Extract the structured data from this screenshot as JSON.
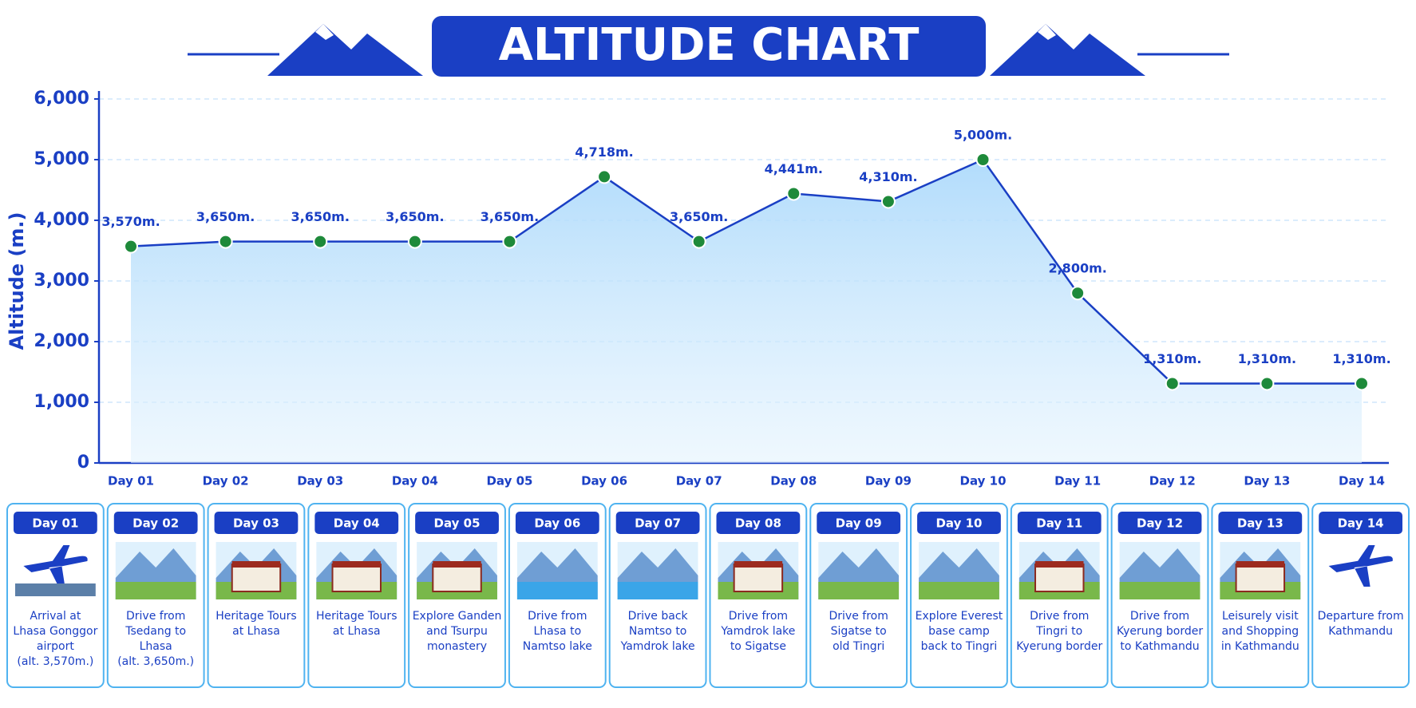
{
  "chart_data": {
    "type": "line",
    "title": "ALTITUDE CHART",
    "y_label": "Altitude (m.)",
    "categories": [
      "Day 01",
      "Day 02",
      "Day 03",
      "Day 04",
      "Day 05",
      "Day 06",
      "Day 07",
      "Day 08",
      "Day 09",
      "Day 10",
      "Day 11",
      "Day 12",
      "Day 13",
      "Day 14"
    ],
    "values": [
      3570,
      3650,
      3650,
      3650,
      3650,
      4718,
      3650,
      4441,
      4310,
      5000,
      2800,
      1310,
      1310,
      1310
    ],
    "value_labels": [
      "3,570m.",
      "3,650m.",
      "3,650m.",
      "3,650m.",
      "3,650m.",
      "4,718m.",
      "3,650m.",
      "4,441m.",
      "4,310m.",
      "5,000m.",
      "2,800m.",
      "1,310m.",
      "1,310m.",
      "1,310m."
    ],
    "color": "#1a3fc4",
    "marker_color": "#1e8a3a",
    "ylim": [
      0,
      6000
    ],
    "yticks": [
      0,
      {
        "value": 1000,
        "label": "1,000"
      },
      {
        "value": 2000,
        "label": "2,000"
      },
      {
        "value": 3000,
        "label": "3,000"
      },
      {
        "value": 4000,
        "label": "4,000"
      },
      {
        "value": 5000,
        "label": "5,000"
      },
      {
        "value": 6000,
        "label": "6,000"
      }
    ],
    "grid": true
  },
  "cards": [
    [
      "Arrival at",
      "Lhasa Gonggor",
      "airport",
      "(alt. 3,570m.)"
    ],
    [
      "Drive from",
      "Tsedang to",
      "Lhasa",
      "(alt. 3,650m.)"
    ],
    [
      "Heritage Tours",
      "at Lhasa"
    ],
    [
      "Heritage Tours",
      "at Lhasa"
    ],
    [
      "Explore Ganden",
      "and Tsurpu",
      "monastery"
    ],
    [
      "Drive from",
      "Lhasa to",
      "Namtso lake"
    ],
    [
      "Drive back",
      "Namtso to",
      "Yamdrok lake"
    ],
    [
      "Drive from",
      "Yamdrok lake",
      "to Sigatse"
    ],
    [
      "Drive from",
      "Sigatse to",
      "old Tingri"
    ],
    [
      "Explore Everest",
      "base camp",
      "back to Tingri"
    ],
    [
      "Drive from",
      "Tingri to",
      "Kyerung border"
    ],
    [
      "Drive from",
      "Kyerung border",
      "to Kathmandu"
    ],
    [
      "Leisurely visit",
      "and Shopping",
      "in Kathmandu"
    ],
    [
      "Departure from",
      "Kathmandu"
    ]
  ]
}
